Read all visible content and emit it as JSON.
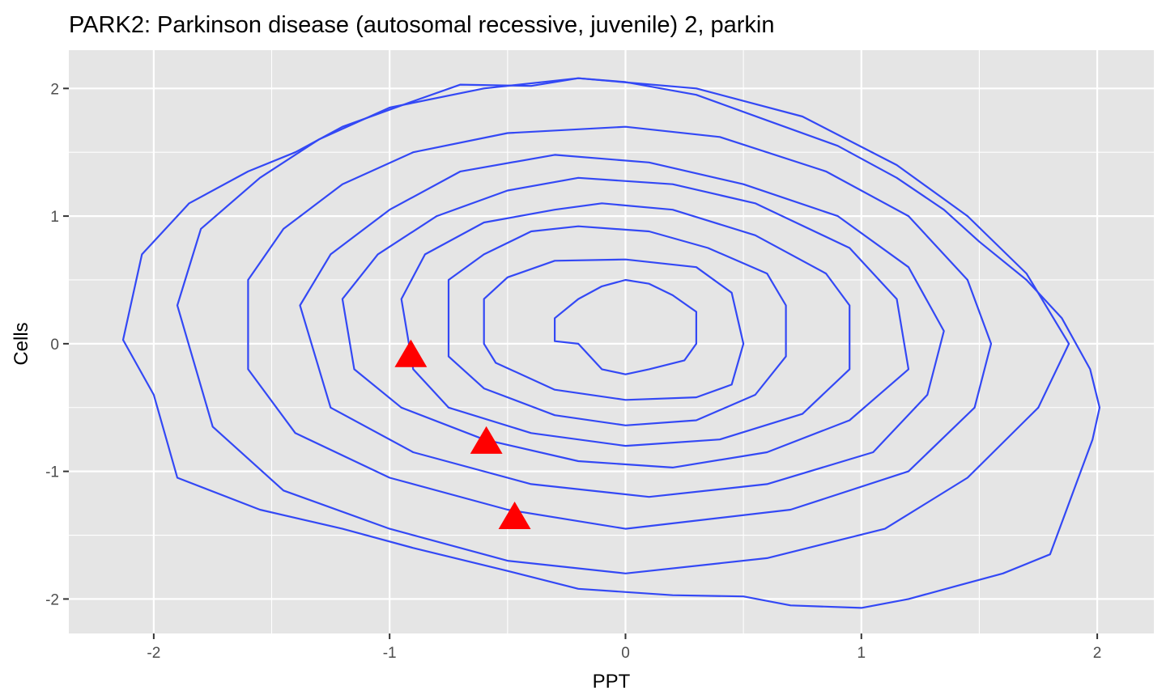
{
  "chart_data": {
    "type": "contour",
    "title": "PARK2: Parkinson disease (autosomal recessive, juvenile) 2, parkin",
    "xlabel": "PPT",
    "ylabel": "Cells",
    "xlim": [
      -2.36,
      2.24
    ],
    "ylim": [
      -2.27,
      2.3
    ],
    "x_ticks": [
      -2,
      -1,
      0,
      1,
      2
    ],
    "x_tick_labels": [
      "-2",
      "-1",
      "0",
      "1",
      "2"
    ],
    "y_ticks": [
      -2,
      -1,
      0,
      1,
      2
    ],
    "y_tick_labels": [
      "-2",
      "-1",
      "0",
      "1",
      "2"
    ],
    "grid": true,
    "background_color": "#e5e5e5",
    "contour_color": "#3348f5",
    "marker_color": "#ff0000",
    "marker_shape": "triangle",
    "contours": [
      {
        "name": "level-1",
        "points": [
          [
            -0.3,
            0.2
          ],
          [
            -0.2,
            0.35
          ],
          [
            -0.1,
            0.45
          ],
          [
            0.0,
            0.5
          ],
          [
            0.1,
            0.47
          ],
          [
            0.2,
            0.38
          ],
          [
            0.3,
            0.25
          ],
          [
            0.3,
            0.0
          ],
          [
            0.25,
            -0.13
          ],
          [
            0.1,
            -0.2
          ],
          [
            0.0,
            -0.24
          ],
          [
            -0.1,
            -0.2
          ],
          [
            -0.2,
            0.0
          ],
          [
            -0.3,
            0.02
          ]
        ]
      },
      {
        "name": "level-2",
        "points": [
          [
            -0.6,
            0.35
          ],
          [
            -0.5,
            0.52
          ],
          [
            -0.3,
            0.65
          ],
          [
            0.0,
            0.66
          ],
          [
            0.3,
            0.6
          ],
          [
            0.45,
            0.4
          ],
          [
            0.5,
            0.0
          ],
          [
            0.45,
            -0.32
          ],
          [
            0.3,
            -0.42
          ],
          [
            0.0,
            -0.44
          ],
          [
            -0.3,
            -0.36
          ],
          [
            -0.55,
            -0.15
          ],
          [
            -0.6,
            0.0
          ],
          [
            -0.6,
            0.35
          ]
        ]
      },
      {
        "name": "level-3",
        "points": [
          [
            -0.75,
            0.5
          ],
          [
            -0.6,
            0.7
          ],
          [
            -0.4,
            0.88
          ],
          [
            -0.2,
            0.92
          ],
          [
            0.1,
            0.88
          ],
          [
            0.35,
            0.75
          ],
          [
            0.6,
            0.55
          ],
          [
            0.68,
            0.3
          ],
          [
            0.68,
            -0.1
          ],
          [
            0.55,
            -0.4
          ],
          [
            0.3,
            -0.6
          ],
          [
            0.0,
            -0.64
          ],
          [
            -0.3,
            -0.56
          ],
          [
            -0.6,
            -0.35
          ],
          [
            -0.75,
            -0.1
          ],
          [
            -0.75,
            0.5
          ]
        ]
      },
      {
        "name": "level-4",
        "points": [
          [
            -0.95,
            0.35
          ],
          [
            -0.85,
            0.7
          ],
          [
            -0.6,
            0.95
          ],
          [
            -0.3,
            1.05
          ],
          [
            -0.1,
            1.1
          ],
          [
            0.2,
            1.05
          ],
          [
            0.55,
            0.85
          ],
          [
            0.85,
            0.55
          ],
          [
            0.95,
            0.3
          ],
          [
            0.95,
            -0.2
          ],
          [
            0.75,
            -0.55
          ],
          [
            0.4,
            -0.75
          ],
          [
            0.0,
            -0.8
          ],
          [
            -0.4,
            -0.7
          ],
          [
            -0.75,
            -0.5
          ],
          [
            -0.9,
            -0.2
          ],
          [
            -0.95,
            0.35
          ]
        ]
      },
      {
        "name": "level-5",
        "points": [
          [
            -1.2,
            0.35
          ],
          [
            -1.05,
            0.7
          ],
          [
            -0.8,
            1.0
          ],
          [
            -0.5,
            1.2
          ],
          [
            -0.2,
            1.3
          ],
          [
            0.2,
            1.25
          ],
          [
            0.55,
            1.1
          ],
          [
            0.95,
            0.75
          ],
          [
            1.15,
            0.35
          ],
          [
            1.2,
            -0.2
          ],
          [
            0.95,
            -0.6
          ],
          [
            0.6,
            -0.85
          ],
          [
            0.2,
            -0.97
          ],
          [
            -0.2,
            -0.92
          ],
          [
            -0.6,
            -0.75
          ],
          [
            -0.95,
            -0.5
          ],
          [
            -1.15,
            -0.2
          ],
          [
            -1.2,
            0.35
          ]
        ]
      },
      {
        "name": "level-6",
        "points": [
          [
            -1.38,
            0.3
          ],
          [
            -1.25,
            0.7
          ],
          [
            -1.0,
            1.05
          ],
          [
            -0.7,
            1.35
          ],
          [
            -0.3,
            1.48
          ],
          [
            0.1,
            1.42
          ],
          [
            0.5,
            1.25
          ],
          [
            0.9,
            1.0
          ],
          [
            1.2,
            0.6
          ],
          [
            1.35,
            0.1
          ],
          [
            1.28,
            -0.4
          ],
          [
            1.05,
            -0.85
          ],
          [
            0.6,
            -1.1
          ],
          [
            0.1,
            -1.2
          ],
          [
            -0.4,
            -1.1
          ],
          [
            -0.9,
            -0.85
          ],
          [
            -1.25,
            -0.5
          ],
          [
            -1.38,
            0.3
          ]
        ]
      },
      {
        "name": "level-7",
        "points": [
          [
            -1.6,
            0.5
          ],
          [
            -1.45,
            0.9
          ],
          [
            -1.2,
            1.25
          ],
          [
            -0.9,
            1.5
          ],
          [
            -0.5,
            1.65
          ],
          [
            0.0,
            1.7
          ],
          [
            0.4,
            1.62
          ],
          [
            0.85,
            1.35
          ],
          [
            1.2,
            1.0
          ],
          [
            1.45,
            0.5
          ],
          [
            1.55,
            0.0
          ],
          [
            1.48,
            -0.5
          ],
          [
            1.2,
            -1.0
          ],
          [
            0.7,
            -1.3
          ],
          [
            0.0,
            -1.45
          ],
          [
            -0.5,
            -1.3
          ],
          [
            -1.0,
            -1.05
          ],
          [
            -1.4,
            -0.7
          ],
          [
            -1.6,
            -0.2
          ],
          [
            -1.6,
            0.5
          ]
        ]
      },
      {
        "name": "level-8",
        "points": [
          [
            -1.9,
            0.3
          ],
          [
            -1.8,
            0.9
          ],
          [
            -1.55,
            1.3
          ],
          [
            -1.3,
            1.6
          ],
          [
            -1.0,
            1.85
          ],
          [
            -0.6,
            2.0
          ],
          [
            -0.2,
            2.08
          ],
          [
            0.3,
            2.0
          ],
          [
            0.75,
            1.78
          ],
          [
            1.15,
            1.4
          ],
          [
            1.45,
            1.0
          ],
          [
            1.7,
            0.55
          ],
          [
            1.88,
            0.0
          ],
          [
            1.75,
            -0.5
          ],
          [
            1.45,
            -1.05
          ],
          [
            1.1,
            -1.45
          ],
          [
            0.6,
            -1.68
          ],
          [
            0.0,
            -1.8
          ],
          [
            -0.5,
            -1.7
          ],
          [
            -1.0,
            -1.45
          ],
          [
            -1.45,
            -1.15
          ],
          [
            -1.75,
            -0.65
          ],
          [
            -1.9,
            0.3
          ]
        ]
      },
      {
        "name": "level-9",
        "points": [
          [
            -2.13,
            0.03
          ],
          [
            -2.05,
            0.7
          ],
          [
            -1.85,
            1.1
          ],
          [
            -1.6,
            1.35
          ],
          [
            -1.4,
            1.5
          ],
          [
            -1.2,
            1.7
          ],
          [
            -0.9,
            1.9
          ],
          [
            -0.7,
            2.03
          ],
          [
            -0.4,
            2.02
          ],
          [
            -0.2,
            2.08
          ],
          [
            0.0,
            2.05
          ],
          [
            0.3,
            1.95
          ],
          [
            0.6,
            1.75
          ],
          [
            0.9,
            1.55
          ],
          [
            1.15,
            1.3
          ],
          [
            1.35,
            1.05
          ],
          [
            1.5,
            0.8
          ],
          [
            1.7,
            0.5
          ],
          [
            1.85,
            0.2
          ],
          [
            1.97,
            -0.2
          ],
          [
            2.01,
            -0.5
          ],
          [
            1.98,
            -0.75
          ],
          [
            1.9,
            -1.15
          ],
          [
            1.8,
            -1.65
          ],
          [
            1.6,
            -1.8
          ],
          [
            1.4,
            -1.9
          ],
          [
            1.2,
            -2.0
          ],
          [
            1.0,
            -2.07
          ],
          [
            0.7,
            -2.05
          ],
          [
            0.5,
            -1.98
          ],
          [
            0.2,
            -1.97
          ],
          [
            -0.2,
            -1.92
          ],
          [
            -0.5,
            -1.78
          ],
          [
            -0.9,
            -1.6
          ],
          [
            -1.2,
            -1.45
          ],
          [
            -1.55,
            -1.3
          ],
          [
            -1.9,
            -1.05
          ],
          [
            -2.0,
            -0.4
          ],
          [
            -2.13,
            0.03
          ]
        ]
      }
    ],
    "points": [
      {
        "x": -0.91,
        "y": -0.1
      },
      {
        "x": -0.59,
        "y": -0.78
      },
      {
        "x": -0.47,
        "y": -1.37
      }
    ]
  }
}
